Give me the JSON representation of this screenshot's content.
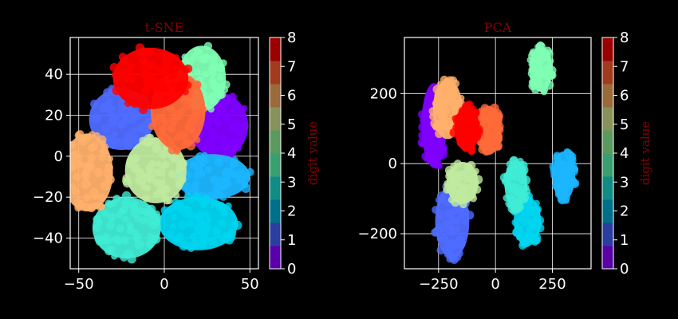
{
  "colormap": {
    "name": "rainbow",
    "discrete_levels": 10,
    "cluster_colors": [
      "#7f00ff",
      "#4f6dff",
      "#1bb6ff",
      "#00d5f0",
      "#40ecd4",
      "#80ffb4",
      "#bfea9f",
      "#ffb06c",
      "#ff6a3a",
      "#ff0000"
    ],
    "colorbar_colors": [
      "#5a00a8",
      "#2a3da0",
      "#006f8a",
      "#108c84",
      "#3a9f6e",
      "#5a9a5e",
      "#86925a",
      "#9a6a3a",
      "#a23a1e",
      "#9a0000"
    ]
  },
  "chart_data": [
    {
      "type": "scatter",
      "title": "t-SNE",
      "xlim": [
        -55,
        55
      ],
      "ylim": [
        -55,
        58
      ],
      "xticks": [
        -50,
        0,
        50
      ],
      "yticks": [
        -40,
        -20,
        0,
        20,
        40
      ],
      "grid": true,
      "colorbar_label": "digit value",
      "colorbar_ticks": [
        0,
        1,
        2,
        3,
        4,
        5,
        6,
        7,
        8
      ],
      "clusters": [
        {
          "label": 0,
          "cx": 32,
          "cy": 15,
          "rx": 17,
          "ry": 16
        },
        {
          "label": 1,
          "cx": -25,
          "cy": 18,
          "rx": 19,
          "ry": 15
        },
        {
          "label": 2,
          "cx": 28,
          "cy": -10,
          "rx": 22,
          "ry": 11
        },
        {
          "label": 3,
          "cx": 20,
          "cy": -33,
          "rx": 23,
          "ry": 13
        },
        {
          "label": 4,
          "cx": -22,
          "cy": -35,
          "rx": 20,
          "ry": 15
        },
        {
          "label": 5,
          "cx": 22,
          "cy": 38,
          "rx": 14,
          "ry": 16
        },
        {
          "label": 6,
          "cx": -5,
          "cy": -7,
          "rx": 18,
          "ry": 16
        },
        {
          "label": 7,
          "cx": -45,
          "cy": -8,
          "rx": 15,
          "ry": 19
        },
        {
          "label": 8,
          "cx": 8,
          "cy": 22,
          "rx": 16,
          "ry": 19
        },
        {
          "label": 9,
          "cx": -8,
          "cy": 38,
          "rx": 22,
          "ry": 15
        }
      ]
    },
    {
      "type": "scatter",
      "title": "PCA",
      "xlim": [
        -400,
        420
      ],
      "ylim": [
        -300,
        360
      ],
      "xticks": [
        -250,
        0,
        250
      ],
      "yticks": [
        -200,
        0,
        200
      ],
      "grid": true,
      "colorbar_label": "digit value",
      "colorbar_ticks": [
        0,
        1,
        2,
        3,
        4,
        5,
        6,
        7,
        8
      ],
      "clusters": [
        {
          "label": 0,
          "cx": -270,
          "cy": 110,
          "rx": 55,
          "ry": 120
        },
        {
          "label": 1,
          "cx": -190,
          "cy": -165,
          "rx": 75,
          "ry": 105
        },
        {
          "label": 2,
          "cx": 300,
          "cy": -35,
          "rx": 50,
          "ry": 70
        },
        {
          "label": 3,
          "cx": 140,
          "cy": -165,
          "rx": 60,
          "ry": 70
        },
        {
          "label": 4,
          "cx": 90,
          "cy": -60,
          "rx": 50,
          "ry": 70
        },
        {
          "label": 5,
          "cx": 200,
          "cy": 270,
          "rx": 50,
          "ry": 65
        },
        {
          "label": 6,
          "cx": -145,
          "cy": -55,
          "rx": 70,
          "ry": 60
        },
        {
          "label": 7,
          "cx": -210,
          "cy": 155,
          "rx": 65,
          "ry": 85
        },
        {
          "label": 8,
          "cx": -30,
          "cy": 95,
          "rx": 55,
          "ry": 70
        },
        {
          "label": 9,
          "cx": -125,
          "cy": 100,
          "rx": 55,
          "ry": 65
        }
      ]
    }
  ]
}
